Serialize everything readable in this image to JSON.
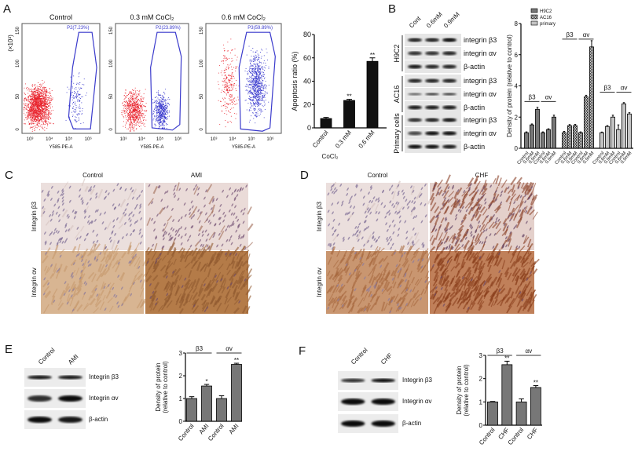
{
  "panel_labels": {
    "a": "A",
    "b": "B",
    "c": "C",
    "d": "D",
    "e": "E",
    "f": "F"
  },
  "panel_a": {
    "y_exponent": "(×10³)",
    "x_axis_label": "Y585-PE-A",
    "x_ticks": [
      "10³",
      "10⁴",
      "10⁵",
      "10⁶"
    ],
    "y_ticks": [
      "0",
      "50",
      "100",
      "150"
    ],
    "flow_plots": [
      {
        "title": "Control",
        "gate": "P2(7.23%)",
        "gate_percent": 7.23
      },
      {
        "title": "0.3 mM CoCl₂",
        "gate": "P2(23.89%)",
        "gate_percent": 23.89
      },
      {
        "title": "0.6 mM CoCl₂",
        "gate": "P3(59.89%)",
        "gate_percent": 59.89
      }
    ]
  },
  "panel_b_blot": {
    "lanes": [
      "Cont",
      "0.6mM",
      "0.9mM"
    ],
    "groups": [
      {
        "cell": "H9C2",
        "rows": [
          "integrin β3",
          "integrin αv",
          "β-actin"
        ]
      },
      {
        "cell": "AC16",
        "rows": [
          "integrin β3",
          "integrin αv",
          "β-actin"
        ]
      },
      {
        "cell": "Primary cells",
        "rows": [
          "integrin β3",
          "integrin αv",
          "β-actin"
        ]
      }
    ]
  },
  "panel_c": {
    "columns": [
      "Control",
      "AMI"
    ],
    "rows": [
      "Integrin β3",
      "Integrin αv"
    ]
  },
  "panel_d": {
    "columns": [
      "Control",
      "CHF"
    ],
    "rows": [
      "Integrin β3",
      "Integrin αv"
    ]
  },
  "panel_e_blot": {
    "lanes": [
      "Control",
      "AMI"
    ],
    "rows": [
      "Integrin β3",
      "Integrin αv",
      "β-actin"
    ]
  },
  "panel_f_blot": {
    "lanes": [
      "Control",
      "CHF"
    ],
    "rows": [
      "Integrin β3",
      "Integrin αv",
      "β-actin"
    ]
  },
  "colors": {
    "flow_negative": "#e8202a",
    "flow_positive": "#3333cc",
    "bar_dark": "#111111",
    "bar_gray": "#777777",
    "bar_light": "#c4c4c4"
  },
  "chart_data": [
    {
      "type": "bar",
      "id": "a",
      "categories": [
        "Control",
        "0.3 mM",
        "0.6 mM"
      ],
      "values": [
        8,
        23.5,
        57
      ],
      "errors": [
        1,
        1,
        3
      ],
      "significance": [
        "",
        "**",
        "**"
      ],
      "xlabel": "CoCl₂",
      "ylabel": "Apoptosis ratio (%)",
      "ylim": [
        0,
        80
      ],
      "yticks": [
        "0",
        "20",
        "40",
        "60",
        "80"
      ]
    },
    {
      "type": "bar",
      "id": "b",
      "ylabel": "Density of protein (relative to control)",
      "ylim": [
        0,
        8
      ],
      "yticks": [
        "0",
        "2",
        "4",
        "6",
        "8"
      ],
      "legend": [
        "H9C2",
        "AC16",
        "primary"
      ],
      "legend_position": "top-left",
      "categories": [
        "Control",
        "0.6mM",
        "0.9mM",
        "Control",
        "0.6mM",
        "0.9mM"
      ],
      "series": [
        {
          "name": "H9C2",
          "values": [
            1,
            1.5,
            2.5,
            1,
            1.2,
            2.0
          ],
          "errors": [
            0.05,
            0.06,
            0.12,
            0.05,
            0.05,
            0.12
          ],
          "brackets": [
            {
              "label": "β3",
              "level": 3.0
            },
            {
              "label": "αv",
              "level": 3.0
            }
          ]
        },
        {
          "name": "AC16",
          "values": [
            1,
            1.45,
            1.45,
            1,
            3.3,
            6.5
          ],
          "errors": [
            0.08,
            0.07,
            0.08,
            0.05,
            0.1,
            0.4
          ],
          "brackets": [
            {
              "label": "β3",
              "level": 7.0
            },
            {
              "label": "αv",
              "level": 7.0
            }
          ]
        },
        {
          "name": "primary",
          "values": [
            1,
            1.4,
            2.0,
            1.2,
            2.85,
            2.2
          ],
          "errors": [
            0.04,
            0.05,
            0.12,
            0.3,
            0.08,
            0.08
          ],
          "brackets": [
            {
              "label": "β3",
              "level": 3.6
            },
            {
              "label": "αv",
              "level": 3.6
            }
          ]
        }
      ]
    },
    {
      "type": "bar",
      "id": "e",
      "categories": [
        "Control",
        "AMI",
        "Control",
        "AMI"
      ],
      "values": [
        1,
        1.55,
        1,
        2.5
      ],
      "errors": [
        0.08,
        0.07,
        0.12,
        0.05
      ],
      "significance": [
        "",
        "*",
        "",
        "**"
      ],
      "brackets": [
        {
          "label": "β3",
          "level": 3
        },
        {
          "label": "αv",
          "level": 3
        }
      ],
      "ylabel": "Density of protein",
      "ylabel2": "(relative to control)",
      "ylim": [
        0,
        3
      ],
      "yticks": [
        "0",
        "1",
        "2",
        "3"
      ]
    },
    {
      "type": "bar",
      "id": "f",
      "categories": [
        "Control",
        "CHF",
        "Control",
        "CHF"
      ],
      "values": [
        1,
        2.6,
        1,
        1.62
      ],
      "errors": [
        0.02,
        0.15,
        0.13,
        0.08
      ],
      "significance": [
        "",
        "**",
        "",
        "**"
      ],
      "brackets": [
        {
          "label": "β3",
          "level": 3
        },
        {
          "label": "αv",
          "level": 3
        }
      ],
      "ylabel": "Density of protein",
      "ylabel2": "(relative to control)",
      "ylim": [
        0,
        3
      ],
      "yticks": [
        "0",
        "1",
        "2",
        "3"
      ]
    }
  ]
}
